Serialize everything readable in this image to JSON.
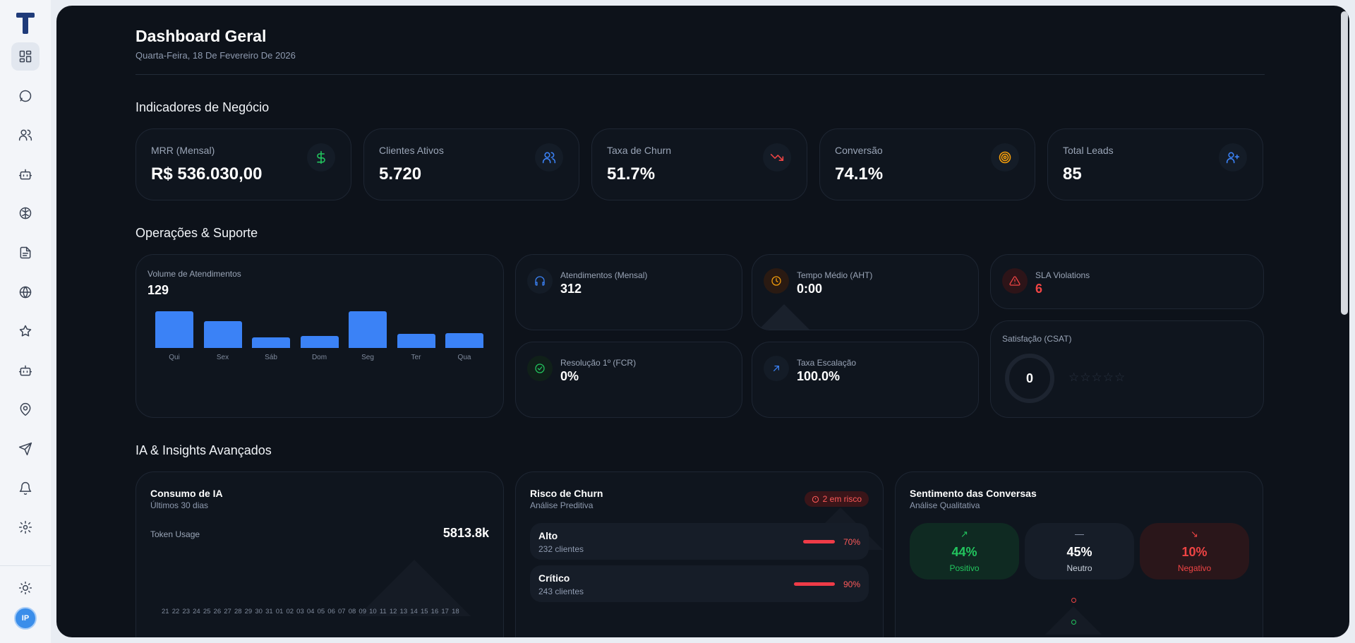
{
  "sidebar": {
    "nav": [
      {
        "icon": "dashboard-icon",
        "active": true
      },
      {
        "icon": "chat-icon",
        "active": false
      },
      {
        "icon": "users-icon",
        "active": false
      },
      {
        "icon": "bot-icon",
        "active": false
      },
      {
        "icon": "brain-icon",
        "active": false
      },
      {
        "icon": "document-icon",
        "active": false
      },
      {
        "icon": "globe-icon",
        "active": false
      },
      {
        "icon": "star-icon",
        "active": false
      },
      {
        "icon": "bot-icon",
        "active": false
      },
      {
        "icon": "map-pin-icon",
        "active": false
      },
      {
        "icon": "send-icon",
        "active": false
      },
      {
        "icon": "bell-icon",
        "active": false
      },
      {
        "icon": "gear-icon",
        "active": false
      }
    ],
    "avatar_initials": "IP"
  },
  "header": {
    "title": "Dashboard Geral",
    "date": "Quarta-Feira, 18 De Fevereiro De 2026"
  },
  "business": {
    "title": "Indicadores de Negócio",
    "kpis": [
      {
        "label": "MRR (Mensal)",
        "value": "R$ 536.030,00",
        "icon": "dollar-icon",
        "color": "#22c55e"
      },
      {
        "label": "Clientes Ativos",
        "value": "5.720",
        "icon": "users-icon",
        "color": "#3b82f6"
      },
      {
        "label": "Taxa de Churn",
        "value": "51.7%",
        "icon": "trending-down-icon",
        "color": "#ef4444"
      },
      {
        "label": "Conversão",
        "value": "74.1%",
        "icon": "target-icon",
        "color": "#f59e0b"
      },
      {
        "label": "Total Leads",
        "value": "85",
        "icon": "user-plus-icon",
        "color": "#3b82f6"
      }
    ]
  },
  "operations": {
    "title": "Operações & Suporte",
    "volume": {
      "label": "Volume de Atendimentos",
      "value": "129",
      "chart_data": {
        "type": "bar",
        "categories": [
          "Qui",
          "Sex",
          "Sáb",
          "Dom",
          "Seg",
          "Ter",
          "Qua"
        ],
        "values": [
          34,
          25,
          10,
          11,
          34,
          13,
          14
        ]
      }
    },
    "metrics": {
      "atendimentos": {
        "label": "Atendimentos (Mensal)",
        "value": "312",
        "icon": "headphones-icon",
        "color": "#3b82f6"
      },
      "aht": {
        "label": "Tempo Médio (AHT)",
        "value": "0:00",
        "icon": "clock-icon",
        "color": "#f59e0b"
      },
      "sla": {
        "label": "SLA Violations",
        "value": "6",
        "icon": "alert-triangle-icon",
        "color": "#ef4444"
      },
      "fcr": {
        "label": "Resolução 1º (FCR)",
        "value": "0%",
        "icon": "check-circle-icon",
        "color": "#22c55e"
      },
      "escalacao": {
        "label": "Taxa Escalação",
        "value": "100.0%",
        "icon": "arrow-up-right-icon",
        "color": "#3b82f6"
      }
    },
    "csat": {
      "label": "Satisfação (CSAT)",
      "value": "0",
      "stars": "☆☆☆☆☆",
      "rating": 0
    }
  },
  "ia": {
    "title": "IA & Insights Avançados",
    "consumo": {
      "title": "Consumo de IA",
      "subtitle": "Últimos 30 dias",
      "token_label": "Token Usage",
      "token_value": "5813.8k",
      "days": "21 22 23 24 25 26 27 28 29 30 31 01 02 03 04 05 06 07 08 09 10 11 12 13 14 15 16 17 18"
    },
    "churn": {
      "title": "Risco de Churn",
      "subtitle": "Análise Preditiva",
      "badge": "2 em risco",
      "rows": [
        {
          "name": "Alto",
          "count": "232 clientes",
          "pct": "70%",
          "level": 0.7
        },
        {
          "name": "Crítico",
          "count": "243 clientes",
          "pct": "90%",
          "level": 0.9
        }
      ]
    },
    "sentimento": {
      "title": "Sentimento das Conversas",
      "subtitle": "Análise Qualitativa",
      "items": [
        {
          "pct": "44%",
          "name": "Positivo",
          "symbol": "↗",
          "color": "#22c55e"
        },
        {
          "pct": "45%",
          "name": "Neutro",
          "symbol": "—",
          "color": "#ffffff"
        },
        {
          "pct": "10%",
          "name": "Negativo",
          "symbol": "↘",
          "color": "#ef4444"
        }
      ]
    }
  }
}
